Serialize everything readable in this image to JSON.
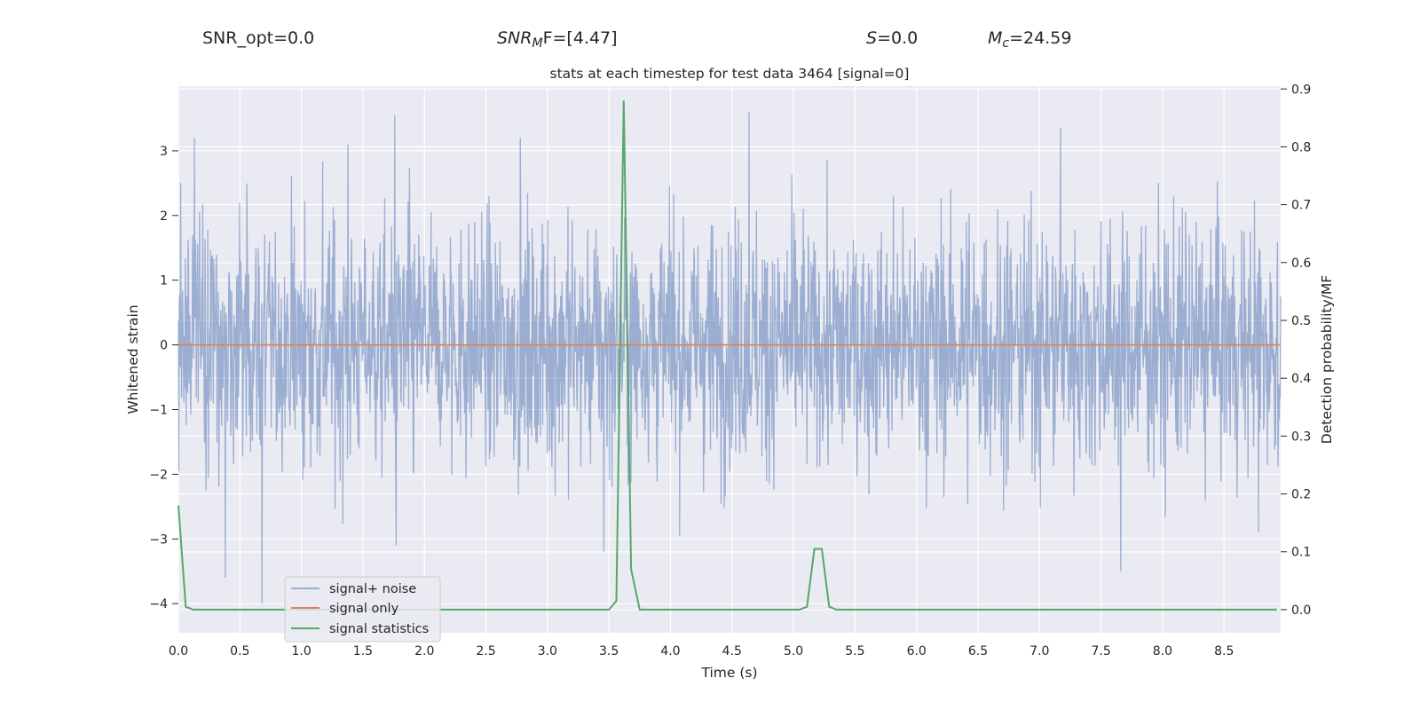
{
  "header": {
    "snr_opt": "SNR_opt=0.0",
    "snr_mf": {
      "italic": "SNR",
      "sub": "M",
      "rest": "F=[4.47]"
    },
    "s": {
      "italic": "S",
      "rest": "=0.0"
    },
    "mc": {
      "italic": "M",
      "sub": "c",
      "rest": "=24.59"
    }
  },
  "chart_data": {
    "type": "line",
    "title": "stats at each timestep for test data 3464 [signal=0]",
    "xlabel": "Time (s)",
    "ylabel_left": "Whitened strain",
    "ylabel_right": "Detection probability/MF",
    "xlim": [
      0.0,
      8.96
    ],
    "ylim_left": [
      -4.45,
      4.0
    ],
    "ylim_right": [
      -0.04,
      0.905
    ],
    "xticks": [
      "0.0",
      "0.5",
      "1.0",
      "1.5",
      "2.0",
      "2.5",
      "3.0",
      "3.5",
      "4.0",
      "4.5",
      "5.0",
      "5.5",
      "6.0",
      "6.5",
      "7.0",
      "7.5",
      "8.0",
      "8.5"
    ],
    "yticks_left": [
      "−4",
      "−3",
      "−2",
      "−1",
      "0",
      "1",
      "2",
      "3"
    ],
    "yticks_right": [
      "0.0",
      "0.1",
      "0.2",
      "0.3",
      "0.4",
      "0.5",
      "0.6",
      "0.7",
      "0.8",
      "0.9"
    ],
    "grid": true,
    "legend_position": "lower-left",
    "colors": {
      "background": "#eaeaf2",
      "grid": "#ffffff",
      "noise": "#4c72b0",
      "signal": "#dd8452",
      "stats": "#55a868"
    },
    "series": [
      {
        "name": "signal+ noise",
        "axis": "left",
        "description_values": "white noise, std ~1, min ~-4.0, max ~3.6",
        "noise_peaks": [
          {
            "x": 0.02,
            "y": 2.5
          },
          {
            "x": 0.13,
            "y": 3.2
          },
          {
            "x": 0.38,
            "y": -3.6
          },
          {
            "x": 0.68,
            "y": -4.0
          },
          {
            "x": 1.38,
            "y": 3.1
          },
          {
            "x": 1.76,
            "y": 3.55
          },
          {
            "x": 1.77,
            "y": -3.1
          },
          {
            "x": 2.78,
            "y": 3.2
          },
          {
            "x": 3.46,
            "y": -3.2
          },
          {
            "x": 4.64,
            "y": 3.6
          },
          {
            "x": 7.17,
            "y": 3.35
          },
          {
            "x": 7.66,
            "y": -3.5
          },
          {
            "x": 8.78,
            "y": -2.9
          }
        ]
      },
      {
        "name": "signal only",
        "axis": "left",
        "x": [
          0.0,
          8.96
        ],
        "y": [
          0.0,
          0.0
        ]
      },
      {
        "name": "signal statistics",
        "axis": "right",
        "x": [
          0.0,
          0.06,
          0.12,
          0.25,
          3.5,
          3.56,
          3.62,
          3.68,
          3.75,
          3.85,
          5.05,
          5.11,
          5.17,
          5.23,
          5.29,
          5.35,
          5.4,
          8.93
        ],
        "y": [
          0.18,
          0.005,
          0.0,
          0.0,
          0.0,
          0.015,
          0.88,
          0.07,
          0.0,
          0.0,
          0.0,
          0.005,
          0.105,
          0.105,
          0.005,
          0.0,
          0.0,
          0.0
        ]
      }
    ]
  }
}
